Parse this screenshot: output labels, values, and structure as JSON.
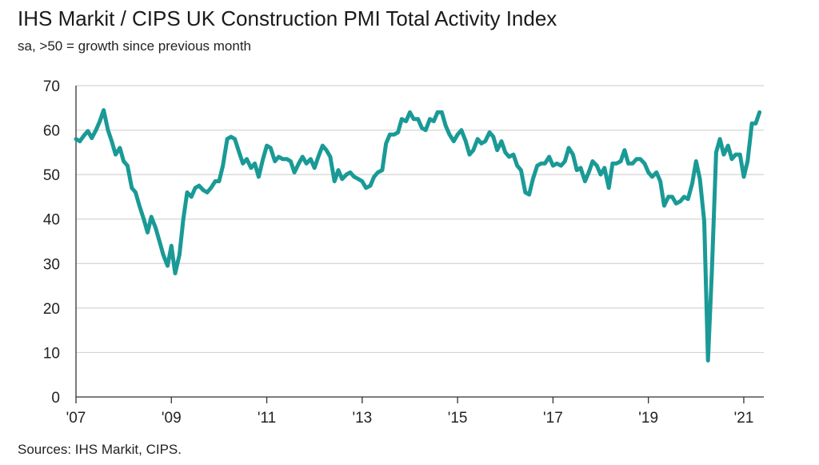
{
  "title": "IHS Markit / CIPS UK Construction PMI Total Activity Index",
  "subtitle": "sa, >50 = growth since previous month",
  "source": "Sources: IHS Markit, CIPS.",
  "colors": {
    "line": "#1a9a96",
    "grid": "#d4d4d4",
    "axis": "#333333"
  },
  "chart_data": {
    "type": "line",
    "title": "IHS Markit / CIPS UK Construction PMI Total Activity Index",
    "subtitle": "sa, >50 = growth since previous month",
    "xlabel": "",
    "ylabel": "",
    "ylim": [
      0,
      70
    ],
    "yticks": [
      0,
      10,
      20,
      30,
      40,
      50,
      60,
      70
    ],
    "xlim": [
      2007.0,
      2021.42
    ],
    "xticks": [
      {
        "value": 2007,
        "label": "'07"
      },
      {
        "value": 2009,
        "label": "'09"
      },
      {
        "value": 2011,
        "label": "'11"
      },
      {
        "value": 2013,
        "label": "'13"
      },
      {
        "value": 2015,
        "label": "'15"
      },
      {
        "value": 2017,
        "label": "'17"
      },
      {
        "value": 2019,
        "label": "'19"
      },
      {
        "value": 2021,
        "label": "'21"
      }
    ],
    "grid": true,
    "series": [
      {
        "name": "UK Construction PMI Total Activity Index",
        "points": [
          [
            2007.0,
            58.0
          ],
          [
            2007.08,
            57.5
          ],
          [
            2007.17,
            58.8
          ],
          [
            2007.25,
            59.8
          ],
          [
            2007.33,
            58.2
          ],
          [
            2007.42,
            60.0
          ],
          [
            2007.5,
            62.0
          ],
          [
            2007.58,
            64.5
          ],
          [
            2007.67,
            60.0
          ],
          [
            2007.75,
            57.5
          ],
          [
            2007.83,
            54.5
          ],
          [
            2007.92,
            56.0
          ],
          [
            2008.0,
            53.0
          ],
          [
            2008.08,
            52.0
          ],
          [
            2008.17,
            47.0
          ],
          [
            2008.25,
            46.0
          ],
          [
            2008.33,
            43.0
          ],
          [
            2008.42,
            40.0
          ],
          [
            2008.5,
            37.0
          ],
          [
            2008.58,
            40.5
          ],
          [
            2008.67,
            38.0
          ],
          [
            2008.75,
            35.0
          ],
          [
            2008.83,
            32.0
          ],
          [
            2008.92,
            29.5
          ],
          [
            2009.0,
            34.0
          ],
          [
            2009.08,
            27.8
          ],
          [
            2009.17,
            32.0
          ],
          [
            2009.25,
            40.0
          ],
          [
            2009.33,
            46.0
          ],
          [
            2009.42,
            45.0
          ],
          [
            2009.5,
            47.0
          ],
          [
            2009.58,
            47.5
          ],
          [
            2009.67,
            46.5
          ],
          [
            2009.75,
            46.0
          ],
          [
            2009.83,
            47.0
          ],
          [
            2009.92,
            48.5
          ],
          [
            2010.0,
            48.5
          ],
          [
            2010.08,
            52.0
          ],
          [
            2010.17,
            58.0
          ],
          [
            2010.25,
            58.5
          ],
          [
            2010.33,
            58.0
          ],
          [
            2010.42,
            55.0
          ],
          [
            2010.5,
            52.5
          ],
          [
            2010.58,
            53.5
          ],
          [
            2010.67,
            51.5
          ],
          [
            2010.75,
            52.5
          ],
          [
            2010.83,
            49.5
          ],
          [
            2010.92,
            53.5
          ],
          [
            2011.0,
            56.5
          ],
          [
            2011.08,
            56.0
          ],
          [
            2011.17,
            53.0
          ],
          [
            2011.25,
            54.0
          ],
          [
            2011.33,
            53.5
          ],
          [
            2011.42,
            53.5
          ],
          [
            2011.5,
            53.0
          ],
          [
            2011.58,
            50.5
          ],
          [
            2011.67,
            52.5
          ],
          [
            2011.75,
            54.0
          ],
          [
            2011.83,
            52.5
          ],
          [
            2011.92,
            53.5
          ],
          [
            2012.0,
            51.5
          ],
          [
            2012.08,
            54.0
          ],
          [
            2012.17,
            56.5
          ],
          [
            2012.25,
            55.5
          ],
          [
            2012.33,
            54.0
          ],
          [
            2012.42,
            48.5
          ],
          [
            2012.5,
            51.0
          ],
          [
            2012.58,
            49.0
          ],
          [
            2012.67,
            50.0
          ],
          [
            2012.75,
            50.5
          ],
          [
            2012.83,
            49.5
          ],
          [
            2012.92,
            49.0
          ],
          [
            2013.0,
            48.5
          ],
          [
            2013.08,
            47.0
          ],
          [
            2013.17,
            47.5
          ],
          [
            2013.25,
            49.5
          ],
          [
            2013.33,
            50.5
          ],
          [
            2013.42,
            51.0
          ],
          [
            2013.5,
            57.0
          ],
          [
            2013.58,
            59.0
          ],
          [
            2013.67,
            59.0
          ],
          [
            2013.75,
            59.5
          ],
          [
            2013.83,
            62.5
          ],
          [
            2013.92,
            62.0
          ],
          [
            2014.0,
            64.0
          ],
          [
            2014.08,
            62.5
          ],
          [
            2014.17,
            62.5
          ],
          [
            2014.25,
            60.5
          ],
          [
            2014.33,
            60.0
          ],
          [
            2014.42,
            62.5
          ],
          [
            2014.5,
            62.0
          ],
          [
            2014.58,
            64.0
          ],
          [
            2014.67,
            64.0
          ],
          [
            2014.75,
            61.0
          ],
          [
            2014.83,
            59.0
          ],
          [
            2014.92,
            57.5
          ],
          [
            2015.0,
            59.0
          ],
          [
            2015.08,
            60.0
          ],
          [
            2015.17,
            57.5
          ],
          [
            2015.25,
            54.5
          ],
          [
            2015.33,
            55.5
          ],
          [
            2015.42,
            58.0
          ],
          [
            2015.5,
            57.0
          ],
          [
            2015.58,
            57.5
          ],
          [
            2015.67,
            59.5
          ],
          [
            2015.75,
            58.5
          ],
          [
            2015.83,
            55.5
          ],
          [
            2015.92,
            57.5
          ],
          [
            2016.0,
            55.0
          ],
          [
            2016.08,
            54.0
          ],
          [
            2016.17,
            54.5
          ],
          [
            2016.25,
            52.0
          ],
          [
            2016.33,
            51.0
          ],
          [
            2016.42,
            46.0
          ],
          [
            2016.5,
            45.5
          ],
          [
            2016.58,
            49.0
          ],
          [
            2016.67,
            52.0
          ],
          [
            2016.75,
            52.5
          ],
          [
            2016.83,
            52.5
          ],
          [
            2016.92,
            54.0
          ],
          [
            2017.0,
            52.0
          ],
          [
            2017.08,
            52.5
          ],
          [
            2017.17,
            52.0
          ],
          [
            2017.25,
            53.0
          ],
          [
            2017.33,
            56.0
          ],
          [
            2017.42,
            54.5
          ],
          [
            2017.5,
            51.0
          ],
          [
            2017.58,
            51.5
          ],
          [
            2017.67,
            48.5
          ],
          [
            2017.75,
            50.5
          ],
          [
            2017.83,
            53.0
          ],
          [
            2017.92,
            52.0
          ],
          [
            2018.0,
            50.0
          ],
          [
            2018.08,
            51.5
          ],
          [
            2018.17,
            47.0
          ],
          [
            2018.25,
            52.5
          ],
          [
            2018.33,
            52.5
          ],
          [
            2018.42,
            53.0
          ],
          [
            2018.5,
            55.5
          ],
          [
            2018.58,
            52.5
          ],
          [
            2018.67,
            52.5
          ],
          [
            2018.75,
            53.5
          ],
          [
            2018.83,
            53.5
          ],
          [
            2018.92,
            52.5
          ],
          [
            2019.0,
            50.5
          ],
          [
            2019.08,
            49.5
          ],
          [
            2019.17,
            50.5
          ],
          [
            2019.25,
            48.5
          ],
          [
            2019.33,
            43.0
          ],
          [
            2019.42,
            45.0
          ],
          [
            2019.5,
            45.0
          ],
          [
            2019.58,
            43.5
          ],
          [
            2019.67,
            44.0
          ],
          [
            2019.75,
            45.0
          ],
          [
            2019.83,
            44.5
          ],
          [
            2019.92,
            48.0
          ],
          [
            2020.0,
            53.0
          ],
          [
            2020.08,
            49.0
          ],
          [
            2020.17,
            39.5
          ],
          [
            2020.25,
            8.2
          ],
          [
            2020.33,
            28.0
          ],
          [
            2020.42,
            55.0
          ],
          [
            2020.5,
            58.0
          ],
          [
            2020.58,
            54.5
          ],
          [
            2020.67,
            56.5
          ],
          [
            2020.75,
            53.5
          ],
          [
            2020.83,
            54.5
          ],
          [
            2020.92,
            54.5
          ],
          [
            2021.0,
            49.5
          ],
          [
            2021.08,
            53.0
          ],
          [
            2021.17,
            61.5
          ],
          [
            2021.25,
            61.5
          ],
          [
            2021.33,
            64.0
          ]
        ]
      }
    ]
  }
}
